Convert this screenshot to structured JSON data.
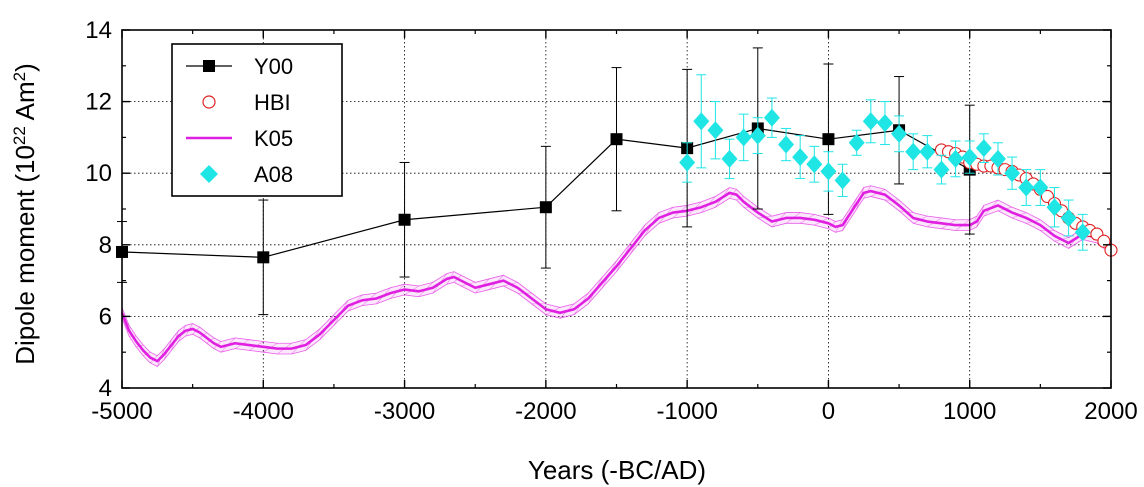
{
  "chart_data": {
    "type": "line",
    "xlabel": "Years (-BC/AD)",
    "ylabel": {
      "prefix": "Dipole moment (10",
      "exp1": "22",
      "middle": " Am",
      "exp2": "2",
      "suffix": ")"
    },
    "xlim": [
      -5000,
      2000
    ],
    "ylim": [
      4,
      14
    ],
    "xticks": [
      -5000,
      -4000,
      -3000,
      -2000,
      -1000,
      0,
      1000,
      2000
    ],
    "yticks": [
      4,
      6,
      8,
      10,
      12,
      14
    ],
    "xtick_labels": [
      "-5000",
      "-4000",
      "-3000",
      "-2000",
      "-1000",
      "0",
      "1000",
      "2000"
    ],
    "ytick_labels": [
      "4",
      "6",
      "8",
      "10",
      "12",
      "14"
    ],
    "grid": true,
    "legend": {
      "position": "top-left",
      "entries": [
        {
          "label": "Y00"
        },
        {
          "label": "HBI"
        },
        {
          "label": "K05"
        },
        {
          "label": "A08"
        }
      ]
    },
    "series": [
      {
        "name": "Y00",
        "style": "line+square",
        "color": "#000000",
        "x": [
          -5000,
          -4000,
          -3000,
          -2000,
          -1500,
          -1000,
          -500,
          0,
          500,
          1000
        ],
        "y": [
          7.8,
          7.65,
          8.7,
          9.05,
          10.95,
          10.7,
          11.25,
          10.95,
          11.2,
          10.1
        ],
        "yerr": [
          0.85,
          1.6,
          1.6,
          1.7,
          2.0,
          2.2,
          2.25,
          2.1,
          1.5,
          1.8
        ]
      },
      {
        "name": "HBI",
        "style": "open-circle",
        "color": "#e02020",
        "x": [
          800,
          850,
          900,
          950,
          1000,
          1050,
          1100,
          1150,
          1200,
          1250,
          1300,
          1350,
          1400,
          1450,
          1500,
          1550,
          1600,
          1650,
          1700,
          1750,
          1800,
          1850,
          1900,
          1950,
          2000
        ],
        "y": [
          10.65,
          10.6,
          10.55,
          10.45,
          10.3,
          10.25,
          10.2,
          10.2,
          10.15,
          10.1,
          10.05,
          9.95,
          9.85,
          9.7,
          9.55,
          9.35,
          9.15,
          8.95,
          8.75,
          8.6,
          8.5,
          8.4,
          8.3,
          8.1,
          7.85
        ]
      },
      {
        "name": "K05",
        "style": "line+band",
        "color": "#e020e0",
        "x": [
          -5000,
          -4950,
          -4900,
          -4850,
          -4800,
          -4750,
          -4700,
          -4650,
          -4600,
          -4550,
          -4500,
          -4450,
          -4400,
          -4350,
          -4300,
          -4200,
          -4100,
          -4000,
          -3900,
          -3800,
          -3700,
          -3600,
          -3500,
          -3400,
          -3300,
          -3200,
          -3100,
          -3000,
          -2900,
          -2800,
          -2700,
          -2650,
          -2600,
          -2500,
          -2400,
          -2300,
          -2200,
          -2100,
          -2000,
          -1900,
          -1800,
          -1700,
          -1600,
          -1500,
          -1400,
          -1300,
          -1200,
          -1100,
          -1000,
          -900,
          -800,
          -700,
          -650,
          -600,
          -500,
          -400,
          -300,
          -200,
          -100,
          0,
          50,
          100,
          200,
          250,
          300,
          400,
          500,
          600,
          700,
          800,
          900,
          1000,
          1050,
          1100,
          1200,
          1300,
          1400,
          1500,
          1600,
          1700,
          1800,
          1900,
          2000
        ],
        "y": [
          6.1,
          5.6,
          5.3,
          5.05,
          4.85,
          4.75,
          4.95,
          5.2,
          5.45,
          5.6,
          5.65,
          5.55,
          5.4,
          5.25,
          5.15,
          5.25,
          5.2,
          5.15,
          5.1,
          5.1,
          5.2,
          5.5,
          5.9,
          6.3,
          6.45,
          6.5,
          6.65,
          6.75,
          6.7,
          6.8,
          7.05,
          7.1,
          7.0,
          6.8,
          6.9,
          7.0,
          6.8,
          6.5,
          6.2,
          6.1,
          6.2,
          6.5,
          6.95,
          7.4,
          7.9,
          8.4,
          8.75,
          8.9,
          8.95,
          9.05,
          9.2,
          9.45,
          9.4,
          9.2,
          8.9,
          8.65,
          8.75,
          8.75,
          8.7,
          8.6,
          8.5,
          8.55,
          9.15,
          9.45,
          9.5,
          9.4,
          9.1,
          8.75,
          8.65,
          8.6,
          8.55,
          8.55,
          8.65,
          8.95,
          9.1,
          8.9,
          8.75,
          8.55,
          8.25,
          8.05,
          8.3,
          8.2,
          7.9
        ],
        "band_halfwidth": 0.15
      },
      {
        "name": "A08",
        "style": "diamond+errorbar",
        "color": "#1fe5e5",
        "x": [
          -1000,
          -900,
          -800,
          -700,
          -600,
          -500,
          -400,
          -300,
          -200,
          -100,
          0,
          100,
          200,
          300,
          400,
          500,
          600,
          700,
          800,
          900,
          1000,
          1100,
          1200,
          1300,
          1400,
          1500,
          1600,
          1700,
          1800
        ],
        "y": [
          10.3,
          11.45,
          11.2,
          10.4,
          11.0,
          11.05,
          11.55,
          10.8,
          10.45,
          10.25,
          10.05,
          9.8,
          10.85,
          11.45,
          11.4,
          11.1,
          10.6,
          10.6,
          10.1,
          10.4,
          10.45,
          10.7,
          10.4,
          10.0,
          9.6,
          9.6,
          9.05,
          8.75,
          8.35
        ],
        "yerr": [
          0.55,
          1.3,
          0.8,
          0.55,
          0.65,
          0.5,
          0.55,
          0.45,
          0.6,
          0.5,
          0.55,
          0.45,
          0.35,
          0.6,
          0.6,
          0.5,
          0.5,
          0.45,
          0.4,
          0.5,
          0.45,
          0.4,
          0.45,
          0.45,
          0.5,
          0.5,
          0.55,
          0.5,
          0.5
        ]
      }
    ]
  }
}
